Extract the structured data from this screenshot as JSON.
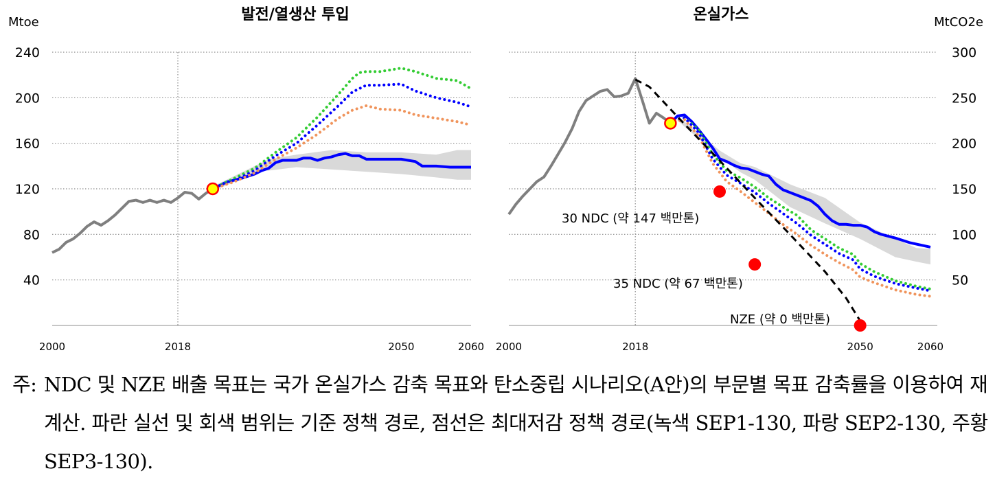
{
  "chart_data": [
    {
      "type": "line",
      "title": "발전/열생산 투입",
      "ylabel": "Mtoe",
      "xlim": [
        2000,
        2060
      ],
      "ylim": [
        0,
        240
      ],
      "x_ticks": [
        "2000",
        "2018",
        "2050",
        "2060"
      ],
      "y_ticks": [
        "40",
        "80",
        "120",
        "160",
        "200",
        "240"
      ],
      "grid": true,
      "vline": 2018,
      "band": {
        "x": [
          2023,
          2030,
          2031,
          2035,
          2040,
          2045,
          2050,
          2055,
          2058,
          2060
        ],
        "lower": [
          118,
          136,
          136,
          139,
          137,
          135,
          133,
          130,
          128,
          128
        ],
        "upper": [
          122,
          143,
          146,
          150,
          154,
          152,
          152,
          150,
          154,
          154
        ]
      },
      "series": [
        {
          "style": "gray-solid",
          "x": [
            2000,
            2001,
            2002,
            2003,
            2004,
            2005,
            2006,
            2007,
            2008,
            2009,
            2010,
            2011,
            2012,
            2013,
            2014,
            2015,
            2016,
            2017,
            2018,
            2019,
            2020,
            2021,
            2022,
            2023
          ],
          "values": [
            64,
            67,
            73,
            76,
            81,
            87,
            91,
            88,
            92,
            97,
            103,
            109,
            110,
            108,
            110,
            108,
            110,
            108,
            112,
            117,
            116,
            111,
            116,
            120
          ]
        },
        {
          "style": "blue-solid",
          "x": [
            2023,
            2025,
            2027,
            2029,
            2030,
            2031,
            2032,
            2033,
            2035,
            2036,
            2037,
            2038,
            2039,
            2040,
            2041,
            2042,
            2043,
            2044,
            2045,
            2047,
            2050,
            2052,
            2053,
            2055,
            2057,
            2060
          ],
          "values": [
            120,
            126,
            129,
            133,
            136,
            138,
            143,
            145,
            145,
            147,
            147,
            145,
            147,
            148,
            150,
            151,
            149,
            149,
            146,
            146,
            146,
            144,
            140,
            140,
            139,
            139
          ]
        },
        {
          "style": "green-dotted",
          "x": [
            2023,
            2026,
            2029,
            2032,
            2035,
            2038,
            2041,
            2043,
            2044,
            2045,
            2047,
            2050,
            2052,
            2055,
            2058,
            2060
          ],
          "values": [
            120,
            129,
            138,
            152,
            165,
            183,
            203,
            217,
            222,
            223,
            223,
            226,
            223,
            217,
            215,
            208
          ]
        },
        {
          "style": "blue-dotted",
          "x": [
            2023,
            2026,
            2029,
            2032,
            2035,
            2038,
            2041,
            2043,
            2045,
            2047,
            2050,
            2052,
            2055,
            2058,
            2060
          ],
          "values": [
            120,
            127,
            136,
            149,
            160,
            176,
            193,
            205,
            211,
            211,
            212,
            206,
            200,
            196,
            192
          ]
        },
        {
          "style": "orange-dotted",
          "x": [
            2023,
            2026,
            2029,
            2032,
            2035,
            2038,
            2041,
            2043,
            2045,
            2047,
            2050,
            2052,
            2055,
            2058,
            2060
          ],
          "values": [
            120,
            126,
            134,
            146,
            156,
            168,
            182,
            189,
            193,
            190,
            189,
            185,
            182,
            179,
            176
          ]
        }
      ],
      "markers": [
        {
          "style": "yellow-circle",
          "x": 2023,
          "value": 120
        }
      ]
    },
    {
      "type": "line",
      "title": "온실가스",
      "ylabel": "MtCO2e",
      "xlim": [
        2000,
        2060
      ],
      "ylim": [
        0,
        300
      ],
      "x_ticks": [
        "2000",
        "2018",
        "2050",
        "2060"
      ],
      "y_ticks": [
        "50",
        "100",
        "150",
        "200",
        "250",
        "300"
      ],
      "grid": true,
      "vline": 2018,
      "band": {
        "x": [
          2024,
          2030,
          2033,
          2035,
          2040,
          2045,
          2050,
          2055,
          2058,
          2060
        ],
        "lower": [
          225,
          185,
          168,
          160,
          130,
          112,
          95,
          75,
          70,
          67
        ],
        "upper": [
          230,
          192,
          178,
          174,
          155,
          140,
          113,
          95,
          85,
          84
        ]
      },
      "series": [
        {
          "style": "gray-solid",
          "x": [
            2000,
            2001,
            2002,
            2003,
            2004,
            2005,
            2006,
            2007,
            2008,
            2009,
            2010,
            2011,
            2012,
            2013,
            2014,
            2015,
            2016,
            2017,
            2018,
            2019,
            2020,
            2021,
            2022,
            2023
          ],
          "values": [
            122,
            133,
            142,
            150,
            158,
            163,
            175,
            188,
            201,
            216,
            235,
            247,
            252,
            257,
            259,
            251,
            252,
            255,
            271,
            247,
            222,
            233,
            228,
            222
          ]
        },
        {
          "style": "blue-solid",
          "x": [
            2023,
            2024,
            2025,
            2026,
            2027,
            2028,
            2029,
            2030,
            2031,
            2032,
            2033,
            2034,
            2035,
            2036,
            2037,
            2038,
            2039,
            2040,
            2041,
            2042,
            2043,
            2044,
            2045,
            2046,
            2047,
            2048,
            2049,
            2050,
            2051,
            2052,
            2053,
            2055,
            2057,
            2060
          ],
          "values": [
            222,
            230,
            231,
            224,
            215,
            205,
            195,
            183,
            180,
            176,
            173,
            172,
            169,
            166,
            164,
            155,
            149,
            146,
            143,
            140,
            137,
            131,
            122,
            115,
            111,
            111,
            110,
            110,
            108,
            103,
            100,
            96,
            91,
            86
          ]
        },
        {
          "style": "green-dotted",
          "x": [
            2023,
            2025,
            2027,
            2029,
            2031,
            2033,
            2035,
            2037,
            2039,
            2041,
            2043,
            2045,
            2047,
            2049,
            2050,
            2052,
            2055,
            2058,
            2060
          ],
          "values": [
            222,
            228,
            215,
            188,
            170,
            162,
            152,
            140,
            130,
            121,
            105,
            95,
            85,
            78,
            68,
            59,
            49,
            43,
            40
          ]
        },
        {
          "style": "blue-dotted",
          "x": [
            2023,
            2025,
            2027,
            2029,
            2031,
            2033,
            2035,
            2037,
            2039,
            2041,
            2043,
            2045,
            2047,
            2049,
            2050,
            2052,
            2055,
            2058,
            2060
          ],
          "values": [
            222,
            228,
            212,
            183,
            165,
            156,
            146,
            134,
            123,
            112,
            99,
            89,
            79,
            72,
            62,
            54,
            46,
            41,
            38
          ]
        },
        {
          "style": "orange-dotted",
          "x": [
            2023,
            2025,
            2027,
            2029,
            2031,
            2033,
            2035,
            2037,
            2039,
            2041,
            2043,
            2045,
            2047,
            2049,
            2050,
            2052,
            2055,
            2058,
            2060
          ],
          "values": [
            222,
            226,
            208,
            178,
            158,
            147,
            135,
            123,
            111,
            100,
            88,
            78,
            69,
            61,
            53,
            47,
            39,
            34,
            32
          ]
        },
        {
          "style": "black-dashed",
          "x": [
            2018,
            2020,
            2025,
            2030,
            2035,
            2040,
            2045,
            2048,
            2050
          ],
          "values": [
            270,
            262,
            221,
            181,
            140,
            100,
            59,
            30,
            5
          ]
        }
      ],
      "markers": [
        {
          "style": "yellow-circle",
          "x": 2023,
          "value": 222
        },
        {
          "style": "red-circle",
          "x": 2030,
          "value": 147
        },
        {
          "style": "red-circle",
          "x": 2035,
          "value": 67
        },
        {
          "style": "red-circle",
          "x": 2050,
          "value": 0
        }
      ],
      "annotations": [
        "30 NDC (약 147 백만톤)",
        "35 NDC (약 67 백만톤)",
        "NZE (약 0 백만톤)"
      ]
    }
  ],
  "note": {
    "label": "주:",
    "text": "NDC 및 NZE 배출 목표는 국가 온실가스 감축 목표와 탄소중립 시나리오(A안)의 부문별 목표 감축률을 이용하여 재계산. 파란 실선 및 회색 범위는 기준 정책 경로, 점선은 최대저감 정책 경로(녹색 SEP1-130, 파랑 SEP2-130, 주황 SEP3-130)."
  },
  "colors": {
    "gray": "#7f7f7f",
    "blue": "#0000ff",
    "green": "#33cc33",
    "orange": "#f0945c",
    "band": "#d9d9d9",
    "red": "#ff0000",
    "yellow": "#ffff00"
  }
}
